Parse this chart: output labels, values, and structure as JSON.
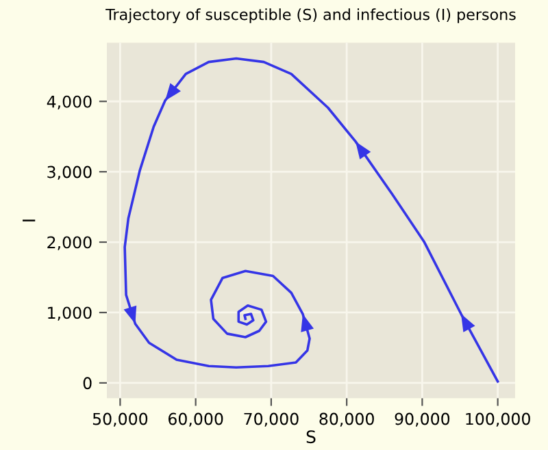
{
  "chart_data": {
    "type": "line",
    "title": "Trajectory of susceptible (S) and infectious (I) persons",
    "xlabel": "S",
    "ylabel": "I",
    "x": [
      100000,
      95140,
      90280,
      86030,
      81170,
      77520,
      72660,
      69020,
      65370,
      61730,
      58690,
      55950,
      54440,
      52610,
      51090,
      50610,
      50790,
      52000,
      53830,
      57470,
      61730,
      65370,
      69620,
      73270,
      74790,
      75090,
      74180,
      72660,
      70240,
      66590,
      63550,
      62030,
      62340,
      64160,
      66590,
      68420,
      69320,
      68720,
      66900,
      65680,
      65680,
      66780,
      67630,
      67330,
      66470,
      66590
    ],
    "series": [
      {
        "color": "#3535e6",
        "values": [
          20,
          980,
          2000,
          2680,
          3430,
          3910,
          4390,
          4560,
          4610,
          4560,
          4390,
          4010,
          3640,
          3020,
          2340,
          1930,
          1250,
          840,
          570,
          330,
          240,
          220,
          240,
          290,
          460,
          630,
          980,
          1280,
          1520,
          1590,
          1490,
          1180,
          910,
          700,
          650,
          740,
          870,
          1040,
          1100,
          1010,
          870,
          830,
          890,
          980,
          960,
          910
        ]
      }
    ],
    "xlim": [
      48240,
      102300
    ],
    "ylim": [
      -218,
      4833
    ],
    "xticks": [
      {
        "value": 50000,
        "label": "50,000"
      },
      {
        "value": 60000,
        "label": "60,000"
      },
      {
        "value": 70000,
        "label": "70,000"
      },
      {
        "value": 80000,
        "label": "80,000"
      },
      {
        "value": 90000,
        "label": "90,000"
      },
      {
        "value": 100000,
        "label": "100,000"
      }
    ],
    "yticks": [
      0,
      {
        "value": 1000,
        "label": "1,000"
      },
      {
        "value": 2000,
        "label": "2,000"
      },
      {
        "value": 3000,
        "label": "3,000"
      },
      {
        "value": 4000,
        "label": "4,000"
      }
    ],
    "grid": true,
    "marker": "none",
    "line_style": "solid",
    "legend": false
  }
}
